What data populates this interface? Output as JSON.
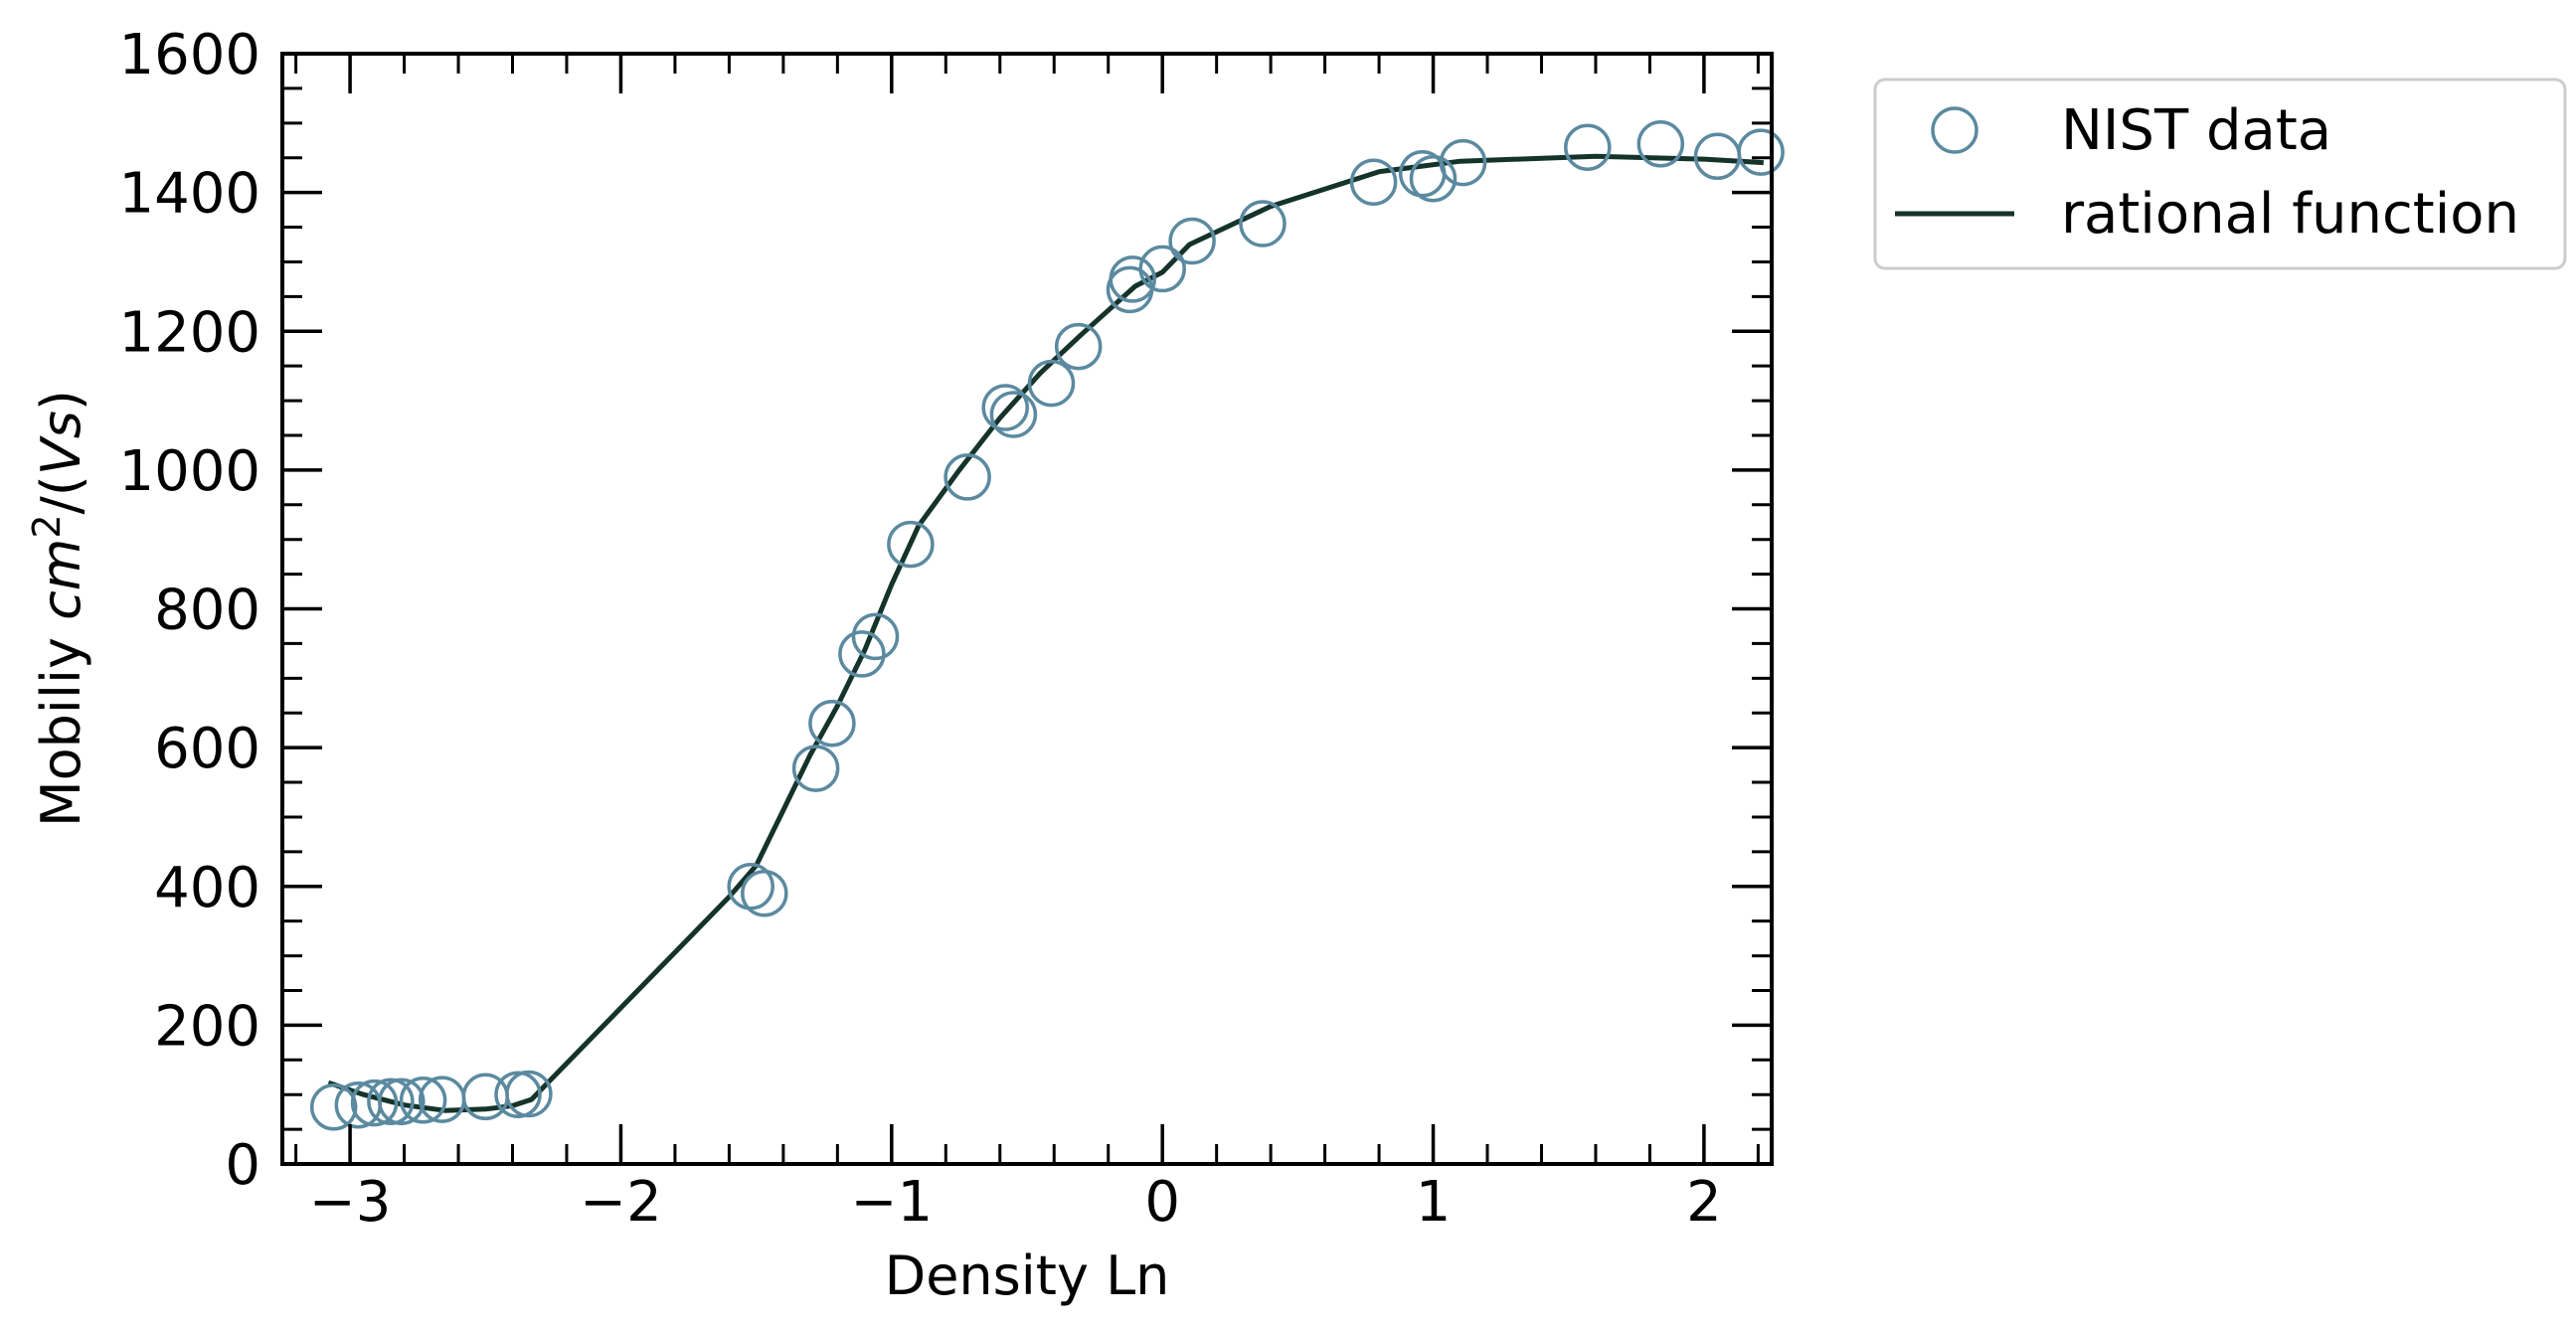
{
  "chart_data": {
    "type": "scatter",
    "xlabel": "Density Ln",
    "ylabel_prefix": "Mobiliy ",
    "ylabel_math": "cm",
    "ylabel_sup": "2",
    "ylabel_suffix": "/(",
    "ylabel_math2": "Vs",
    "ylabel_close": ")",
    "xlim": [
      -3.25,
      2.25
    ],
    "ylim": [
      0,
      1600
    ],
    "x_ticks": [
      -3,
      -2,
      -1,
      0,
      1,
      2
    ],
    "x_tick_labels": [
      "−3",
      "−2",
      "−1",
      "0",
      "1",
      "2"
    ],
    "y_ticks": [
      0,
      200,
      400,
      600,
      800,
      1000,
      1200,
      1400,
      1600
    ],
    "y_tick_labels": [
      "0",
      "200",
      "400",
      "600",
      "800",
      "1000",
      "1200",
      "1400",
      "1600"
    ],
    "legend_position": "outside-top-right",
    "series": [
      {
        "name": "NIST data",
        "kind": "marker",
        "color": "#5b8aa0",
        "points": [
          [
            -3.06,
            82
          ],
          [
            -2.97,
            85
          ],
          [
            -2.91,
            88
          ],
          [
            -2.85,
            90
          ],
          [
            -2.81,
            90
          ],
          [
            -2.73,
            92
          ],
          [
            -2.66,
            93
          ],
          [
            -2.5,
            97
          ],
          [
            -2.38,
            100
          ],
          [
            -2.34,
            101
          ],
          [
            -1.52,
            400
          ],
          [
            -1.47,
            390
          ],
          [
            -1.28,
            570
          ],
          [
            -1.22,
            635
          ],
          [
            -1.11,
            735
          ],
          [
            -1.06,
            760
          ],
          [
            -0.93,
            893
          ],
          [
            -0.72,
            990
          ],
          [
            -0.58,
            1090
          ],
          [
            -0.55,
            1080
          ],
          [
            -0.41,
            1125
          ],
          [
            -0.31,
            1178
          ],
          [
            -0.12,
            1260
          ],
          [
            -0.11,
            1275
          ],
          [
            0.0,
            1290
          ],
          [
            0.11,
            1330
          ],
          [
            0.37,
            1355
          ],
          [
            0.78,
            1415
          ],
          [
            0.96,
            1427
          ],
          [
            1.0,
            1420
          ],
          [
            1.11,
            1443
          ],
          [
            1.57,
            1465
          ],
          [
            1.84,
            1470
          ],
          [
            2.05,
            1452
          ],
          [
            2.21,
            1458
          ]
        ]
      },
      {
        "name": "rational function",
        "kind": "line",
        "color": "#14332a",
        "points": [
          [
            -3.08,
            117
          ],
          [
            -2.95,
            100
          ],
          [
            -2.8,
            85
          ],
          [
            -2.65,
            77
          ],
          [
            -2.5,
            79
          ],
          [
            -2.4,
            84
          ],
          [
            -2.33,
            93
          ],
          [
            -2.2,
            145
          ],
          [
            -2.0,
            225
          ],
          [
            -1.8,
            305
          ],
          [
            -1.6,
            385
          ],
          [
            -1.5,
            430
          ],
          [
            -1.4,
            510
          ],
          [
            -1.3,
            590
          ],
          [
            -1.2,
            660
          ],
          [
            -1.1,
            740
          ],
          [
            -1.0,
            835
          ],
          [
            -0.9,
            920
          ],
          [
            -0.75,
            1000
          ],
          [
            -0.6,
            1075
          ],
          [
            -0.45,
            1140
          ],
          [
            -0.3,
            1195
          ],
          [
            -0.1,
            1265
          ],
          [
            0.0,
            1285
          ],
          [
            0.1,
            1325
          ],
          [
            0.4,
            1380
          ],
          [
            0.8,
            1430
          ],
          [
            1.1,
            1445
          ],
          [
            1.6,
            1452
          ],
          [
            2.0,
            1448
          ],
          [
            2.22,
            1443
          ]
        ]
      }
    ]
  }
}
